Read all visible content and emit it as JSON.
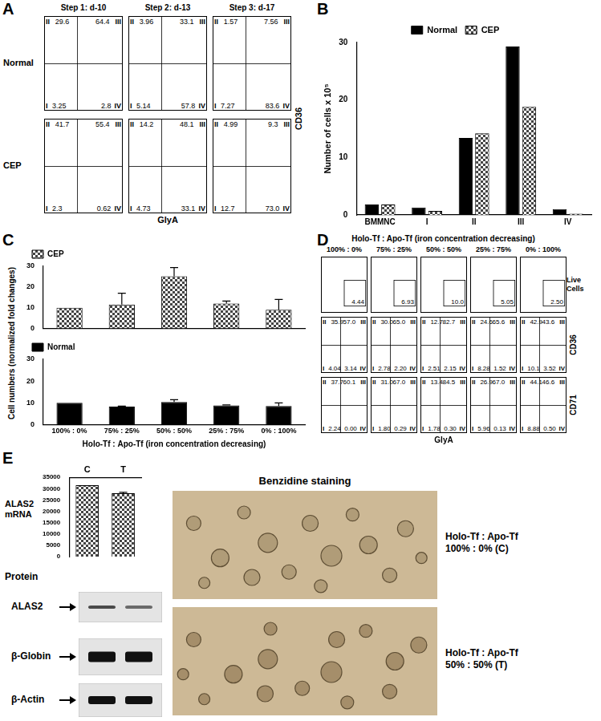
{
  "panel_labels": [
    "A",
    "B",
    "C",
    "D",
    "E"
  ],
  "panel_A": {
    "columns": [
      "Step 1: d-10",
      "Step 2: d-13",
      "Step 3: d-17"
    ],
    "quadrants": [
      "I",
      "II",
      "III",
      "IV"
    ],
    "x_label": "GlyA",
    "y_label": "CD36",
    "rows": [
      {
        "label": "Normal",
        "plots": [
          [
            "3.25",
            "29.6",
            "64.4",
            "2.8"
          ],
          [
            "5.14",
            "3.96",
            "33.1",
            "57.8"
          ],
          [
            "7.27",
            "1.57",
            "7.56",
            "83.6"
          ]
        ]
      },
      {
        "label": "CEP",
        "plots": [
          [
            "2.3",
            "41.7",
            "55.4",
            "0.62"
          ],
          [
            "4.73",
            "14.2",
            "48.1",
            "33.1"
          ],
          [
            "12.7",
            "4.99",
            "9.3",
            "73.0"
          ]
        ]
      }
    ]
  },
  "chart_data": [
    {
      "type": "bar",
      "categories": [
        "BMMNC",
        "I",
        "II",
        "III",
        "IV"
      ],
      "series": [
        {
          "name": "Normal",
          "color": "#000000",
          "values": [
            1.8,
            1.3,
            13.4,
            29.3,
            1.0
          ]
        },
        {
          "name": "CEP",
          "color": "#444444",
          "marker": "checkered",
          "values": [
            1.8,
            0.7,
            14.2,
            18.8,
            0.2
          ]
        }
      ],
      "y_label": "Number of cells x 10⁵",
      "ylim": [
        0,
        30
      ],
      "yticks": [
        0,
        10,
        20,
        30
      ],
      "grid": false,
      "legend": "top"
    },
    {
      "type": "bar",
      "categories": [
        "100% : 0%",
        "75% : 25%",
        "50% : 50%",
        "25% : 75%",
        "0% : 100%"
      ],
      "series": [
        {
          "name": "CEP",
          "color": "#444444",
          "marker": "checkered",
          "values": [
            10,
            11.5,
            25.2,
            12,
            9
          ],
          "errors": [
            null,
            5.5,
            4.2,
            1.2,
            5
          ]
        }
      ],
      "ylim": [
        0,
        30
      ],
      "yticks": [
        0,
        10,
        20,
        30
      ],
      "grid": false,
      "legend": "top-left",
      "tick_labels": "y"
    },
    {
      "type": "bar",
      "categories": [
        "100% : 0%",
        "75% : 25%",
        "50% : 50%",
        "25% : 75%",
        "0% : 100%"
      ],
      "series": [
        {
          "name": "Normal",
          "color": "#000000",
          "values": [
            10,
            8.2,
            10.3,
            8.8,
            8.5
          ],
          "errors": [
            null,
            0.2,
            1.1,
            0.2,
            1.4
          ]
        }
      ],
      "x_label": "Holo-Tf : Apo-Tf (iron concentration decreasing)",
      "ylim": [
        0,
        30
      ],
      "yticks": [
        0,
        10,
        20,
        30
      ],
      "grid": false,
      "legend": "top-left"
    },
    {
      "type": "bar",
      "categories": [
        "C",
        "T"
      ],
      "values": [
        31500,
        28000
      ],
      "errors": [
        null,
        400
      ],
      "color": "#444444",
      "marker": "checkered",
      "ylim": [
        0,
        35000
      ],
      "yticks": [
        0,
        5000,
        10000,
        15000,
        20000,
        25000,
        30000,
        35000
      ],
      "grid": false
    }
  ],
  "panel_C": {
    "y_label": "Cell numbers (normalized fold changes)"
  },
  "panel_D": {
    "title": "Holo-Tf : Apo-Tf (iron concentration decreasing)",
    "columns": [
      "100% : 0%",
      "75% : 25%",
      "50% : 50%",
      "25% : 75%",
      "0% : 100%"
    ],
    "quadrants": [
      "I",
      "II",
      "III",
      "IV"
    ],
    "x_label": "GlyA",
    "live": {
      "label": "Live Cells",
      "values": [
        "4.44",
        "6.93",
        "10.0",
        "5.05",
        "2.50"
      ]
    },
    "rows": [
      {
        "label": "CD36",
        "plots": [
          [
            "4.04",
            "35.9",
            "57.0",
            "3.14"
          ],
          [
            "2.78",
            "30.0",
            "65.0",
            "2.20"
          ],
          [
            "2.51",
            "12.7",
            "82.7",
            "2.15"
          ],
          [
            "8.28",
            "24.6",
            "65.6",
            "1.52"
          ],
          [
            "10.1",
            "42.9",
            "43.6",
            "3.52"
          ]
        ]
      },
      {
        "label": "CD71",
        "plots": [
          [
            "2.24",
            "37.7",
            "60.1",
            "0.00"
          ],
          [
            "1.80",
            "31.0",
            "67.0",
            "0.29"
          ],
          [
            "1.78",
            "13.4",
            "84.5",
            "0.30"
          ],
          [
            "5.96",
            "26.9",
            "67.0",
            "0.13"
          ],
          [
            "8.88",
            "44.1",
            "46.6",
            "0.50"
          ]
        ]
      }
    ]
  },
  "panel_E": {
    "mrna_label": "ALAS2 mRNA",
    "protein_label": "Protein",
    "blot": [
      "ALAS2",
      "β-Globin",
      "β-Actin"
    ],
    "staining_title": "Benzidine staining",
    "images": [
      [
        "Holo-Tf : Apo-Tf",
        "100% : 0% (C)"
      ],
      [
        "Holo-Tf : Apo-Tf",
        "50% : 50% (T)"
      ]
    ]
  }
}
